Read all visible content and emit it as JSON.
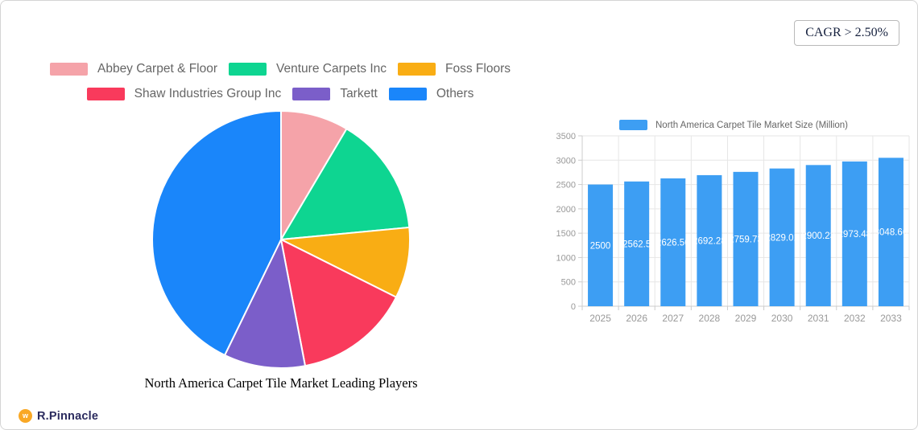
{
  "page": {
    "cagr_label": "CAGR > 2.50%",
    "brand_name": "R.Pinnacle",
    "brand_mark_glyph": "w",
    "brand_color": "#f9a825"
  },
  "chart_data": [
    {
      "type": "pie",
      "title": "North America Carpet Tile Market Leading Players",
      "legend_position": "top",
      "slices": [
        {
          "label": "Abbey Carpet & Floor",
          "value": 8.5,
          "color": "#f5a3a9"
        },
        {
          "label": "Venture Carpets Inc",
          "value": 15.0,
          "color": "#0ed591"
        },
        {
          "label": "Foss Floors",
          "value": 8.9,
          "color": "#f9ad14"
        },
        {
          "label": "Shaw Industries Group Inc",
          "value": 14.6,
          "color": "#f93a5c"
        },
        {
          "label": "Tarkett",
          "value": 10.2,
          "color": "#7b5ec9"
        },
        {
          "label": "Others",
          "value": 42.8,
          "color": "#1a86fa"
        }
      ],
      "legend_rows": [
        [
          0,
          1,
          2
        ],
        [
          3,
          4,
          5
        ]
      ],
      "slice_border_color": "#ffffff"
    },
    {
      "type": "bar",
      "series_name": "North America Carpet Tile Market Size (Million)",
      "categories": [
        "2025",
        "2026",
        "2027",
        "2028",
        "2029",
        "2030",
        "2031",
        "2032",
        "2033"
      ],
      "values": [
        2500,
        2562.5,
        2626.56,
        2692.28,
        2759.73,
        2829.01,
        2900.23,
        2973.48,
        3048.66
      ],
      "bar_labels": [
        "2500",
        "2562.5",
        "2626.56",
        "2692.28",
        "2759.73",
        "2829.01",
        "2900.23",
        "2973.48",
        "3048.66"
      ],
      "ylim": [
        0,
        3500
      ],
      "ytick_step": 500,
      "ytick_labels": [
        "0",
        "500",
        "1000",
        "1500",
        "2000",
        "2500",
        "3000",
        "3500"
      ],
      "bar_color": "#3d9ef3",
      "label_color": "#ffffff",
      "axis_label_color": "#999999",
      "grid_color": "#e6e6e6",
      "axis_line_color": "#cccccc",
      "grid": true,
      "legend_position": "top"
    }
  ]
}
